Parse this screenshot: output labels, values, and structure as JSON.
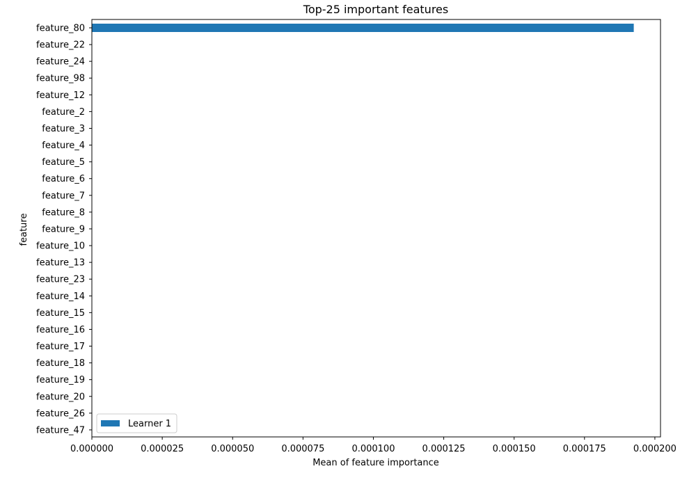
{
  "chart_data": {
    "type": "bar",
    "orientation": "horizontal",
    "title": "Top-25 important features",
    "xlabel": "Mean of feature importance",
    "ylabel": "feature",
    "categories": [
      "feature_80",
      "feature_22",
      "feature_24",
      "feature_98",
      "feature_12",
      "feature_2",
      "feature_3",
      "feature_4",
      "feature_5",
      "feature_6",
      "feature_7",
      "feature_8",
      "feature_9",
      "feature_10",
      "feature_13",
      "feature_23",
      "feature_14",
      "feature_15",
      "feature_16",
      "feature_17",
      "feature_18",
      "feature_19",
      "feature_20",
      "feature_26",
      "feature_47"
    ],
    "series": [
      {
        "name": "Learner 1",
        "color": "#1f77b4",
        "values": [
          0.0001925,
          0,
          0,
          0,
          0,
          0,
          0,
          0,
          0,
          0,
          0,
          0,
          0,
          0,
          0,
          0,
          0,
          0,
          0,
          0,
          0,
          0,
          0,
          0,
          0
        ]
      }
    ],
    "xlim": [
      0,
      0.000202
    ],
    "xticks": [
      "0.000000",
      "0.000025",
      "0.000050",
      "0.000075",
      "0.000100",
      "0.000125",
      "0.000150",
      "0.000175",
      "0.000200"
    ],
    "grid": false,
    "legend_position": "bottom-left"
  }
}
